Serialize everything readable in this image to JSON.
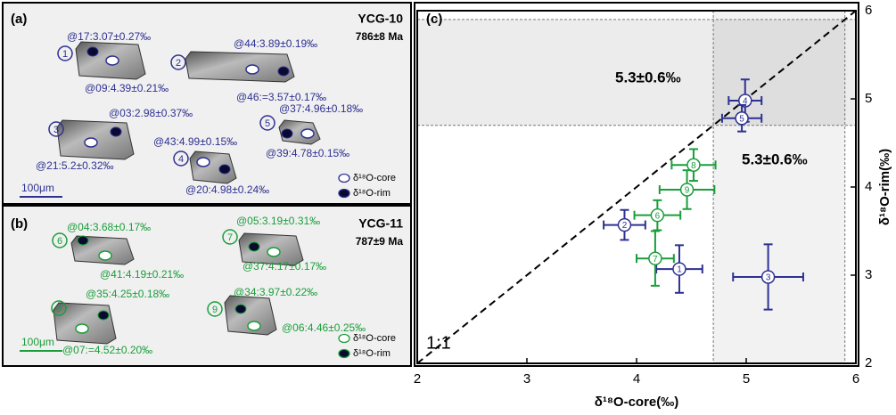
{
  "panels": [
    {
      "label": "(a)",
      "sample": "YCG-10",
      "age": "786±8 Ma",
      "color": "#2e3192",
      "scale": "100μm",
      "legend": [
        "δ¹⁸O-core",
        "δ¹⁸O-rim"
      ],
      "grains": [
        {
          "number": "1",
          "spots": [
            "@17:3.07±0.27‰",
            "@09:4.39±0.21‰"
          ]
        },
        {
          "number": "2",
          "spots": [
            "@44:3.89±0.19‰",
            "@46:=3.57±0.17‰"
          ]
        },
        {
          "number": "3",
          "spots": [
            "@03:2.98±0.37‰",
            "@21:5.2±0.32‰"
          ]
        },
        {
          "number": "4",
          "spots": [
            "@43:4.99±0.15‰",
            "@20:4.98±0.24‰"
          ]
        },
        {
          "number": "5",
          "spots": [
            "@37:4.96±0.18‰",
            "@39:4.78±0.15‰"
          ]
        }
      ]
    },
    {
      "label": "(b)",
      "sample": "YCG-11",
      "age": "787±9 Ma",
      "color": "#1a9e3a",
      "scale": "100μm",
      "legend": [
        "δ¹⁸O-core",
        "δ¹⁸O-rim"
      ],
      "grains": [
        {
          "number": "6",
          "spots": [
            "@04:3.68±0.17‰",
            "@41:4.19±0.21‰"
          ]
        },
        {
          "number": "7",
          "spots": [
            "@05:3.19±0.31‰",
            "@37:4.17±0.17‰"
          ]
        },
        {
          "number": "8",
          "spots": [
            "@35:4.25±0.18‰",
            "@07:=4.52±0.20‰"
          ]
        },
        {
          "number": "9",
          "spots": [
            "@34:3.97±0.22‰",
            "@06:4.46±0.25‰"
          ]
        }
      ]
    }
  ],
  "chart_data": {
    "type": "scatter",
    "panel_label": "(c)",
    "x_label": "δ¹⁸O-core(‰)",
    "y_label": "δ¹⁸O-rim(‰)",
    "xlim": [
      2,
      6
    ],
    "ylim": [
      2,
      6
    ],
    "xticks": [
      2,
      3,
      4,
      5,
      6
    ],
    "yticks": [
      2,
      3,
      4,
      5,
      6
    ],
    "reference_lines": {
      "x": [
        4.7,
        5.9
      ],
      "y": [
        4.7,
        5.9
      ]
    },
    "annotations": [
      "5.3±0.6‰",
      "5.3±0.6‰",
      "1:1"
    ],
    "series": [
      {
        "color": "#2e3192",
        "labels": [
          "1",
          "2",
          "3",
          "4",
          "5"
        ],
        "x": [
          4.39,
          3.89,
          5.2,
          4.99,
          4.96
        ],
        "x_err": [
          0.21,
          0.19,
          0.32,
          0.15,
          0.18
        ],
        "values": [
          3.07,
          3.57,
          2.98,
          4.98,
          4.78
        ],
        "y_err": [
          0.27,
          0.17,
          0.37,
          0.24,
          0.15
        ]
      },
      {
        "color": "#1a9e3a",
        "labels": [
          "6",
          "7",
          "8",
          "9"
        ],
        "x": [
          4.19,
          4.17,
          4.52,
          4.46
        ],
        "x_err": [
          0.21,
          0.17,
          0.2,
          0.25
        ],
        "values": [
          3.68,
          3.19,
          4.25,
          3.97
        ],
        "y_err": [
          0.17,
          0.31,
          0.18,
          0.22
        ]
      }
    ]
  }
}
